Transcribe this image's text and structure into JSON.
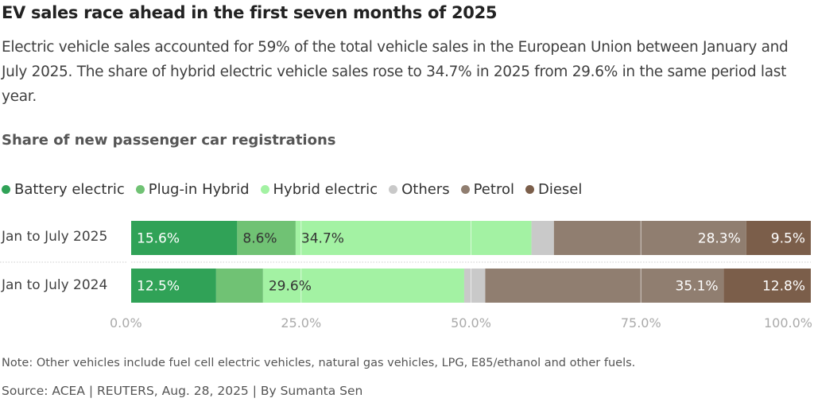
{
  "title": "EV sales race ahead in the first seven months of 2025",
  "subtitle": "Electric vehicle sales accounted for 59% of the total vehicle sales in the European Union between January and July 2025. The share of hybrid electric vehicle sales rose to 34.7% in 2025 from 29.6% in the same period last year.",
  "note": "Note: Other vehicles include fuel cell electric vehicles, natural gas vehicles, LPG, E85/ethanol and other fuels.",
  "source": "Source: ACEA | REUTERS, Aug. 28, 2025 | By Sumanta Sen",
  "chart_data": {
    "type": "bar",
    "orientation": "horizontal",
    "stacked": true,
    "title": "Share of new passenger car registrations",
    "categories": [
      "Jan to July 2025",
      "Jan to July 2024"
    ],
    "series": [
      {
        "name": "Battery electric",
        "color": "#30a257",
        "values": [
          15.6,
          12.5
        ],
        "labels": [
          "15.6%",
          "12.5%"
        ],
        "label_color": "#ffffff"
      },
      {
        "name": "Plug-in Hybrid",
        "color": "#70c274",
        "values": [
          8.6,
          6.9
        ],
        "labels": [
          "8.6%",
          ""
        ],
        "label_color": "#333333"
      },
      {
        "name": "Hybrid electric",
        "color": "#a3f2a3",
        "values": [
          34.7,
          29.6
        ],
        "labels": [
          "34.7%",
          "29.6%"
        ],
        "label_color": "#333333"
      },
      {
        "name": "Others",
        "color": "#c9c9c9",
        "values": [
          3.3,
          3.1
        ],
        "labels": [
          "",
          ""
        ],
        "label_color": "#333333"
      },
      {
        "name": "Petrol",
        "color": "#907e70",
        "values": [
          28.3,
          35.1
        ],
        "labels": [
          "28.3%",
          "35.1%"
        ],
        "label_color": "#ffffff"
      },
      {
        "name": "Diesel",
        "color": "#7b5e4a",
        "values": [
          9.5,
          12.8
        ],
        "labels": [
          "9.5%",
          "12.8%"
        ],
        "label_color": "#ffffff"
      }
    ],
    "xlim": [
      0,
      100
    ],
    "xticks": [
      "0.0%",
      "25.0%",
      "50.0%",
      "75.0%",
      "100.0%"
    ],
    "grid": true,
    "legend_position": "top-left"
  }
}
